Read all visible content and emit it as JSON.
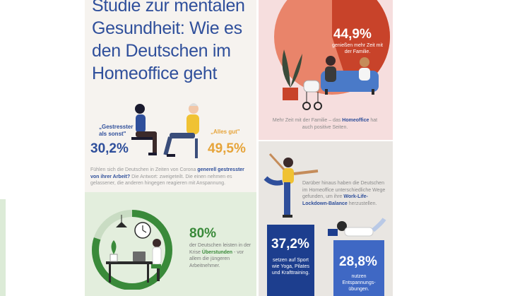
{
  "title": "Studie zur mentalen Gesundheit: Wie es den Deutschen im Homeoffice geht",
  "stress": {
    "quote_more": "„Gestresster als sonst\"",
    "quote_ok": "„Alles gut\"",
    "pct_more": "30,2%",
    "pct_ok": "49,5%",
    "body_pre": "Fühlen sich die Deutschen in Zeiten von Corona ",
    "body_bold": "generell gestresster von ihrer Arbeit?",
    "body_post": " Die Antwort: zweigeteilt. Die einen nehmen es gelassener, die anderen hingegen reagieren mit Anspannung."
  },
  "overtime": {
    "pct": "80%",
    "body_pre": "der Deutschen leisten in der Krise ",
    "body_bold": "Überstunden",
    "body_post": " - vor allem die jüngeren Arbeitnehmer.",
    "fraction": 0.8
  },
  "family": {
    "pct": "44,9%",
    "label": "genießen mehr Zeit mit der Familie.",
    "body_pre": "Mehr Zeit mit der Familie – das ",
    "body_bold": "Homeoffice",
    "body_post": " hat auch positive Seiten.",
    "fraction": 0.449
  },
  "balance": {
    "body_pre": "Darüber hinaus haben die Deutschen im Homeoffice unterschiedliche Wege gefunden, um ihre ",
    "body_bold": "Work-Life-Lockdown-Balance",
    "body_post": " herzustellen."
  },
  "sport": {
    "pct": "37,2%",
    "label": "setzen auf Sport wie Yoga, Pilates und Krafttraining."
  },
  "relax": {
    "pct": "28,8%",
    "label": "nutzen Entspannungs-übungen."
  },
  "colors": {
    "navy": "#2f4f9b",
    "orange": "#e6a43a",
    "green": "#3a8a3a",
    "red": "#c8432a",
    "salmon": "#e9846a"
  }
}
